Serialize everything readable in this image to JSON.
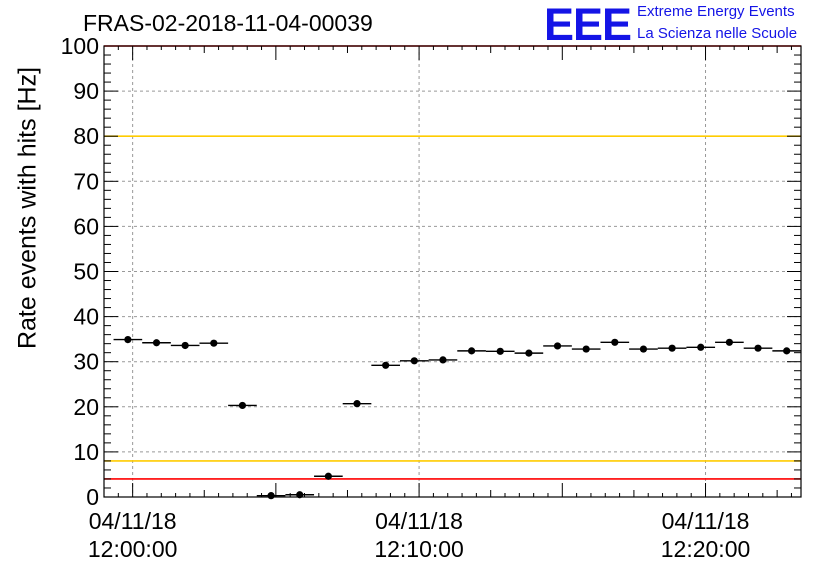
{
  "header": {
    "title": "FRAS-02-2018-11-04-00039",
    "logo_text": "EEE",
    "logo_line1": "Extreme Energy Events",
    "logo_line2": "La Scienza nelle Scuole"
  },
  "colors": {
    "marker": "#000000",
    "red_line": "#ff0000",
    "yellow_line": "#ffcc00",
    "logo": "#1414e6",
    "grid": "#999999"
  },
  "chart_data": {
    "type": "scatter",
    "ylabel": "Rate events with hits [Hz]",
    "ylim": [
      0,
      100
    ],
    "yticks": [
      0,
      10,
      20,
      30,
      40,
      50,
      60,
      70,
      80,
      90,
      100
    ],
    "xlim": [
      "2018-11-04 11:59:00",
      "2018-11-04 12:23:20"
    ],
    "xticks": [
      {
        "time": "2018-11-04 12:00:00",
        "line1": "04/11/18",
        "line2": "12:00:00"
      },
      {
        "time": "2018-11-04 12:10:00",
        "line1": "04/11/18",
        "line2": "12:10:00"
      },
      {
        "time": "2018-11-04 12:20:00",
        "line1": "04/11/18",
        "line2": "12:20:00"
      }
    ],
    "grid": true,
    "bin_width_seconds": 60,
    "reference_lines": [
      {
        "y": 100,
        "color": "red"
      },
      {
        "y": 80,
        "color": "yellow"
      },
      {
        "y": 8,
        "color": "yellow"
      },
      {
        "y": 4,
        "color": "red"
      }
    ],
    "series": [
      {
        "x": [
          "2018-11-04 11:59:50",
          "2018-11-04 12:00:50",
          "2018-11-04 12:01:50",
          "2018-11-04 12:02:50",
          "2018-11-04 12:03:50",
          "2018-11-04 12:04:50",
          "2018-11-04 12:05:50",
          "2018-11-04 12:06:50",
          "2018-11-04 12:07:50",
          "2018-11-04 12:08:50",
          "2018-11-04 12:09:50",
          "2018-11-04 12:10:50",
          "2018-11-04 12:11:50",
          "2018-11-04 12:12:50",
          "2018-11-04 12:13:50",
          "2018-11-04 12:14:50",
          "2018-11-04 12:15:50",
          "2018-11-04 12:16:50",
          "2018-11-04 12:17:50",
          "2018-11-04 12:18:50",
          "2018-11-04 12:19:50",
          "2018-11-04 12:20:50",
          "2018-11-04 12:21:50",
          "2018-11-04 12:22:50"
        ],
        "y": [
          34.9,
          34.2,
          33.6,
          34.1,
          20.3,
          0.3,
          0.5,
          4.6,
          20.7,
          29.2,
          30.2,
          30.4,
          32.4,
          32.3,
          31.9,
          33.5,
          32.8,
          34.3,
          32.8,
          33.0,
          33.2,
          34.3,
          33.0,
          32.4
        ]
      }
    ]
  }
}
